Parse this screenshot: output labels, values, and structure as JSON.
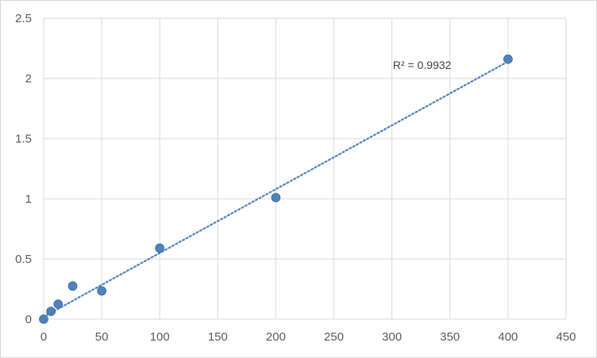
{
  "chart_data": {
    "type": "scatter",
    "title": "",
    "xlabel": "",
    "ylabel": "",
    "xlim": [
      0,
      450
    ],
    "ylim": [
      0,
      2.5
    ],
    "x_ticks": [
      0,
      50,
      100,
      150,
      200,
      250,
      300,
      350,
      400,
      450
    ],
    "y_ticks": [
      0,
      0.5,
      1,
      1.5,
      2,
      2.5
    ],
    "x_tick_labels": [
      "0",
      "50",
      "100",
      "150",
      "200",
      "250",
      "300",
      "350",
      "400",
      "450"
    ],
    "y_tick_labels": [
      "0",
      "0.5",
      "1",
      "1.5",
      "2",
      "2.5"
    ],
    "grid": true,
    "legend": "none",
    "series": [
      {
        "x": [
          0,
          6.25,
          12.5,
          25,
          50,
          100,
          200,
          400
        ],
        "y": [
          0.0,
          0.065,
          0.125,
          0.275,
          0.235,
          0.59,
          1.01,
          2.16
        ],
        "marker_color": "#4f81bd"
      }
    ],
    "trendline": {
      "type": "linear",
      "style": "dotted",
      "color": "#4f81bd",
      "x_range": [
        0,
        400
      ],
      "y_start": 0.02,
      "y_end": 2.14
    },
    "annotations": [
      {
        "text": "R² = 0.9932"
      }
    ]
  }
}
